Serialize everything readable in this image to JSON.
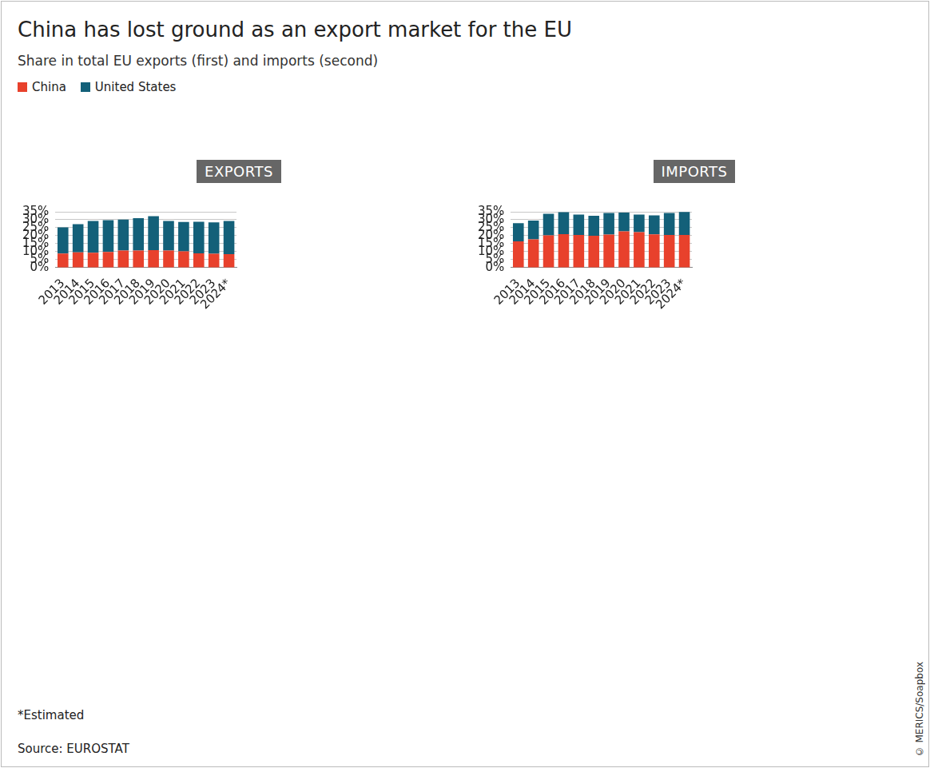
{
  "title": "China has lost ground as an export market for the EU",
  "subtitle": "Share in total EU exports (first) and imports (second)",
  "footnote": "*Estimated",
  "source": "Source: EUROSTAT",
  "credit": "© MERICS/Soapbox",
  "chart_data": [
    {
      "type": "bar",
      "title": "EXPORTS",
      "stacked": true,
      "grid": true,
      "legend": "top-left",
      "categories": [
        "2013",
        "2014",
        "2015",
        "2016",
        "2017",
        "2018",
        "2019",
        "2020",
        "2021",
        "2022",
        "2023",
        "2024*"
      ],
      "series": [
        {
          "name": "China",
          "color": "#e8412c",
          "values": [
            8.9,
            9.6,
            9.4,
            9.9,
            10.7,
            10.8,
            11.0,
            10.7,
            10.3,
            9.0,
            8.8,
            8.5
          ]
        },
        {
          "name": "United States",
          "color": "#136079",
          "values": [
            16.3,
            17.7,
            19.9,
            19.9,
            19.4,
            20.2,
            21.2,
            18.5,
            18.3,
            19.8,
            19.6,
            20.7
          ]
        }
      ],
      "ylim": [
        0,
        35
      ],
      "yticks": [
        {
          "value": 0,
          "label": "0%"
        },
        {
          "value": 5,
          "label": "5%"
        },
        {
          "value": 10,
          "label": "10%"
        },
        {
          "value": 15,
          "label": "15%"
        },
        {
          "value": 20,
          "label": "20%"
        },
        {
          "value": 25,
          "label": "25%"
        },
        {
          "value": 30,
          "label": "30%"
        },
        {
          "value": 35,
          "label": "35%"
        }
      ]
    },
    {
      "type": "bar",
      "title": "IMPORTS",
      "stacked": true,
      "grid": true,
      "categories": [
        "2013",
        "2014",
        "2015",
        "2016",
        "2017",
        "2018",
        "2019",
        "2020",
        "2021",
        "2022",
        "2023",
        "2024*"
      ],
      "series": [
        {
          "name": "China",
          "color": "#e8412c",
          "values": [
            16.5,
            17.8,
            20.2,
            21.0,
            20.5,
            20.0,
            20.8,
            22.7,
            22.3,
            20.9,
            20.5,
            20.5
          ]
        },
        {
          "name": "United States",
          "color": "#136079",
          "values": [
            11.4,
            11.7,
            13.6,
            13.8,
            12.8,
            12.5,
            13.5,
            11.8,
            10.9,
            11.9,
            13.8,
            14.4
          ]
        }
      ],
      "ylim": [
        0,
        35
      ],
      "yticks": [
        {
          "value": 0,
          "label": "0%"
        },
        {
          "value": 5,
          "label": "5%"
        },
        {
          "value": 10,
          "label": "10%"
        },
        {
          "value": 15,
          "label": "15%"
        },
        {
          "value": 20,
          "label": "20%"
        },
        {
          "value": 25,
          "label": "25%"
        },
        {
          "value": 30,
          "label": "30%"
        },
        {
          "value": 35,
          "label": "35%"
        }
      ]
    }
  ]
}
